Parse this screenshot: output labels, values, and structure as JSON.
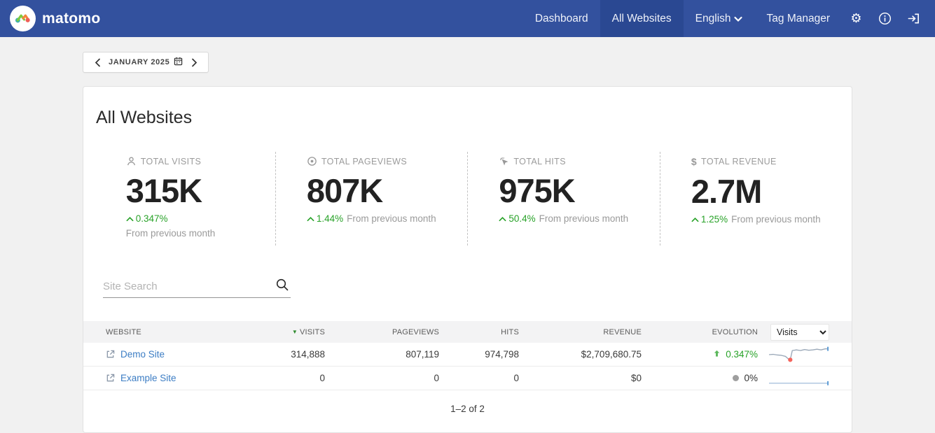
{
  "navbar": {
    "brand": "matomo",
    "items": [
      {
        "label": "Dashboard",
        "active": false
      },
      {
        "label": "All Websites",
        "active": true
      },
      {
        "label": "English",
        "active": false,
        "has_dropdown": true
      },
      {
        "label": "Tag Manager",
        "active": false
      }
    ],
    "icon_buttons": [
      "settings",
      "info",
      "sign-in"
    ]
  },
  "date_picker": {
    "label": "JANUARY 2025"
  },
  "page": {
    "title": "All Websites"
  },
  "kpis": [
    {
      "icon": "person-icon",
      "label": "TOTAL VISITS",
      "value": "315K",
      "change": "0.347%",
      "suffix": "From previous month"
    },
    {
      "icon": "eye-icon",
      "label": "TOTAL PAGEVIEWS",
      "value": "807K",
      "change": "1.44%",
      "suffix": "From previous month"
    },
    {
      "icon": "click-icon",
      "label": "TOTAL HITS",
      "value": "975K",
      "change": "50.4%",
      "suffix": "From previous month"
    },
    {
      "icon": "dollar-icon",
      "label": "TOTAL REVENUE",
      "value": "2.7M",
      "change": "1.25%",
      "suffix": "From previous month",
      "icon_glyph": "$"
    }
  ],
  "search": {
    "placeholder": "Site Search"
  },
  "table": {
    "columns": {
      "website": "WEBSITE",
      "visits": "VISITS",
      "pageviews": "PAGEVIEWS",
      "hits": "HITS",
      "revenue": "REVENUE",
      "evolution": "EVOLUTION"
    },
    "sorted_column": "VISITS",
    "sort_indicator": "▼",
    "evolution_metric": "Visits",
    "rows": [
      {
        "name": "Demo Site",
        "visits": "314,888",
        "pageviews": "807,119",
        "hits": "974,798",
        "revenue": "$2,709,680.75",
        "evolution": "0.347%",
        "trend": "up",
        "sparkline": [
          [
            0,
            13
          ],
          [
            6,
            12.5
          ],
          [
            12,
            13.5
          ],
          [
            18,
            14
          ],
          [
            24,
            15.5
          ],
          [
            28,
            19
          ],
          [
            31,
            20.5
          ],
          [
            34,
            7
          ],
          [
            40,
            6
          ],
          [
            46,
            7
          ],
          [
            52,
            5.5
          ],
          [
            58,
            6.5
          ],
          [
            64,
            6
          ],
          [
            70,
            5
          ],
          [
            76,
            6
          ],
          [
            82,
            4.5
          ],
          [
            86,
            4.5
          ]
        ],
        "dot": [
          31,
          20.5
        ],
        "tick": [
          86,
          4.5
        ],
        "line_color": "#9aa8b8"
      },
      {
        "name": "Example Site",
        "visits": "0",
        "pageviews": "0",
        "hits": "0",
        "revenue": "$0",
        "evolution": "0%",
        "trend": "flat",
        "sparkline": [
          [
            0,
            20
          ],
          [
            86,
            20
          ]
        ],
        "tick": [
          86,
          20
        ],
        "line_color": "#a9c3de"
      }
    ],
    "pagination": "1–2 of 2"
  },
  "colors": {
    "navbar_blue": "#33519E",
    "active_blue": "#2A4892",
    "positive_green": "#28A228",
    "link_blue": "#3C7DC4",
    "dot_red": "#F4645C",
    "tick_blue": "#5B9BD5"
  }
}
